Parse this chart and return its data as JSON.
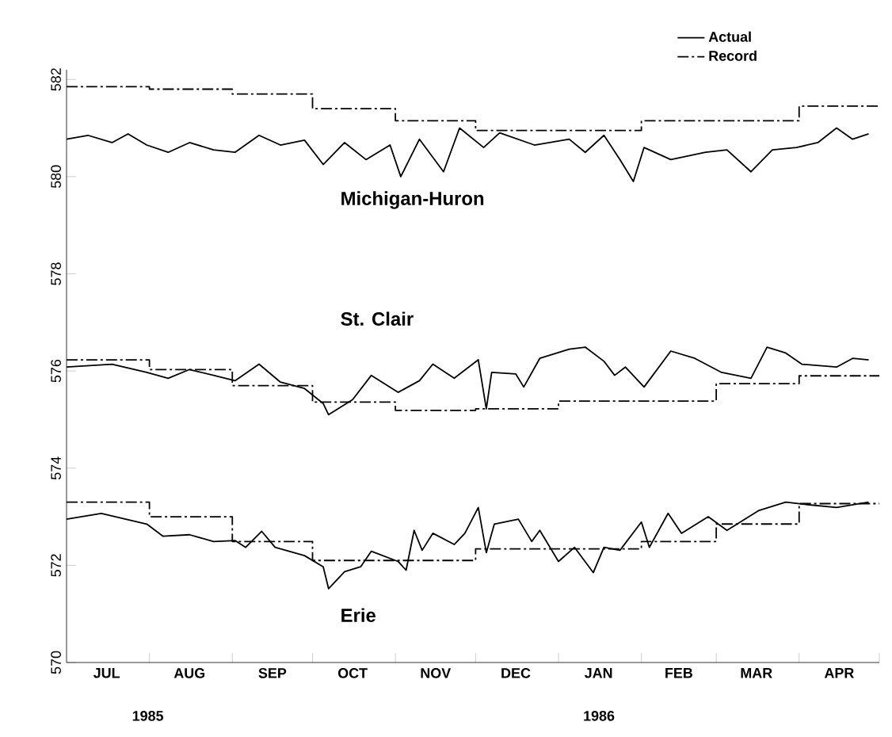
{
  "chart_data": {
    "type": "line",
    "xlim": [
      "1985-07-01",
      "1986-05-01"
    ],
    "xticks": [
      {
        "value": "1985-08-01",
        "label": null
      },
      {
        "value": "1985-09-01",
        "label": null
      },
      {
        "value": "1985-10-01",
        "label": null
      },
      {
        "value": "1985-11-01",
        "label": null
      },
      {
        "value": "1985-12-01",
        "label": null
      },
      {
        "value": "1986-01-01",
        "label": null
      },
      {
        "value": "1986-02-01",
        "label": null
      },
      {
        "value": "1986-03-01",
        "label": null
      },
      {
        "value": "1986-04-01",
        "label": null
      },
      {
        "value": "1986-05-01",
        "label": null
      },
      {
        "value": "1985-07-16",
        "label": "JUL"
      },
      {
        "value": "1985-08-16",
        "label": "AUG"
      },
      {
        "value": "1985-09-16",
        "label": "SEP"
      },
      {
        "value": "1985-10-16",
        "label": "OCT"
      },
      {
        "value": "1985-11-16",
        "label": "NOV"
      },
      {
        "value": "1985-12-16",
        "label": "DEC"
      },
      {
        "value": "1986-01-16",
        "label": "JAN"
      },
      {
        "value": "1986-02-15",
        "label": "FEB"
      },
      {
        "value": "1986-03-16",
        "label": "MAR"
      },
      {
        "value": "1986-04-16",
        "label": "APR"
      }
    ],
    "ylim": [
      570,
      582.2
    ],
    "yticks": [
      570,
      572,
      574,
      576,
      578,
      580,
      582
    ],
    "legend": "top right",
    "marker": "none",
    "series": [
      {
        "name": "Actual",
        "color": "#000000",
        "line_style": "solid",
        "x": [
          "1985-07-01",
          "1985-07-09",
          "1985-07-18",
          "1985-07-24",
          "1985-07-31",
          "1985-08-08",
          "1985-08-16",
          "1985-08-25",
          "1985-09-02",
          "1985-09-11",
          "1985-09-19",
          "1985-09-28",
          "1985-10-05",
          "1985-10-13",
          "1985-10-21",
          "1985-10-30",
          "1985-11-03",
          "1985-11-10",
          "1985-11-19",
          "1985-11-25",
          "1985-12-04",
          "1985-12-10",
          "1985-12-23",
          "1986-01-05",
          "1986-01-11",
          "1986-01-18",
          "1986-01-24",
          "1986-01-29",
          "1986-02-02",
          "1986-02-12",
          "1986-02-25",
          "1986-03-05",
          "1986-03-14",
          "1986-03-22",
          "1986-03-31",
          "1986-04-08",
          "1986-04-15",
          "1986-04-21",
          "1986-04-27"
        ],
        "values": [
          580.77,
          580.85,
          580.7,
          580.88,
          580.65,
          580.5,
          580.7,
          580.55,
          580.5,
          580.85,
          580.65,
          580.75,
          580.25,
          580.7,
          580.35,
          580.65,
          580.0,
          580.77,
          580.1,
          581.0,
          580.6,
          580.9,
          580.65,
          580.77,
          580.5,
          580.85,
          580.35,
          579.9,
          580.6,
          580.35,
          580.5,
          580.55,
          580.1,
          580.55,
          580.6,
          580.7,
          581.0,
          580.77,
          580.88
        ]
      },
      {
        "name": "Record",
        "type": "step",
        "color": "#000000",
        "line_style": "dashdot",
        "x": [
          "1985-07-01",
          "1985-08-01",
          "1985-09-01",
          "1985-10-01",
          "1985-11-01",
          "1985-12-01",
          "1986-01-01",
          "1986-02-01",
          "1986-03-01",
          "1986-04-01",
          "1986-05-01"
        ],
        "values": [
          581.85,
          581.8,
          581.7,
          581.4,
          581.15,
          580.95,
          580.95,
          581.15,
          581.15,
          581.45,
          581.45
        ]
      },
      {
        "color": "#000000",
        "line_style": "solid",
        "x": [
          "1985-07-01",
          "1985-07-18",
          "1985-07-31",
          "1985-08-08",
          "1985-08-16",
          "1985-08-25",
          "1985-09-02",
          "1985-09-11",
          "1985-09-19",
          "1985-09-28",
          "1985-10-05",
          "1985-10-07",
          "1985-10-16",
          "1985-10-23",
          "1985-11-02",
          "1985-11-10",
          "1985-11-15",
          "1985-11-23",
          "1985-12-02",
          "1985-12-05",
          "1985-12-07",
          "1985-12-16",
          "1985-12-19",
          "1985-12-25",
          "1986-01-05",
          "1986-01-11",
          "1986-01-18",
          "1986-01-22",
          "1986-01-26",
          "1986-02-02",
          "1986-02-12",
          "1986-02-21",
          "1986-03-03",
          "1986-03-14",
          "1986-03-20",
          "1986-03-27",
          "1986-04-02",
          "1986-04-15",
          "1986-04-21",
          "1986-04-27"
        ],
        "values": [
          576.08,
          576.14,
          575.97,
          575.85,
          576.03,
          575.91,
          575.8,
          576.14,
          575.77,
          575.64,
          575.33,
          575.1,
          575.41,
          575.91,
          575.56,
          575.8,
          576.14,
          575.85,
          576.23,
          575.22,
          575.97,
          575.94,
          575.67,
          576.26,
          576.45,
          576.49,
          576.2,
          575.91,
          576.08,
          575.67,
          576.41,
          576.26,
          575.97,
          575.85,
          576.49,
          576.37,
          576.14,
          576.08,
          576.26,
          576.23
        ]
      },
      {
        "type": "step",
        "color": "#000000",
        "line_style": "dashdot",
        "x": [
          "1985-07-01",
          "1985-08-01",
          "1985-09-01",
          "1985-10-01",
          "1985-11-01",
          "1985-12-01",
          "1986-01-01",
          "1986-02-01",
          "1986-03-01",
          "1986-04-01",
          "1986-05-01"
        ],
        "values": [
          576.23,
          576.03,
          575.7,
          575.36,
          575.19,
          575.22,
          575.38,
          575.38,
          575.74,
          575.9,
          575.9
        ]
      },
      {
        "color": "#000000",
        "line_style": "solid",
        "x": [
          "1985-07-01",
          "1985-07-14",
          "1985-07-31",
          "1985-08-06",
          "1985-08-16",
          "1985-08-25",
          "1985-09-02",
          "1985-09-06",
          "1985-09-12",
          "1985-09-17",
          "1985-09-28",
          "1985-10-05",
          "1985-10-07",
          "1985-10-13",
          "1985-10-19",
          "1985-10-23",
          "1985-11-02",
          "1985-11-05",
          "1985-11-08",
          "1985-11-11",
          "1985-11-15",
          "1985-11-23",
          "1985-11-27",
          "1985-12-02",
          "1985-12-05",
          "1985-12-08",
          "1985-12-17",
          "1985-12-22",
          "1985-12-25",
          "1986-01-01",
          "1986-01-07",
          "1986-01-14",
          "1986-01-18",
          "1986-01-24",
          "1986-02-01",
          "1986-02-04",
          "1986-02-11",
          "1986-02-16",
          "1986-02-26",
          "1986-03-05",
          "1986-03-17",
          "1986-03-27",
          "1986-04-04",
          "1986-04-15",
          "1986-04-27"
        ],
        "values": [
          572.95,
          573.07,
          572.85,
          572.6,
          572.63,
          572.49,
          572.51,
          572.37,
          572.7,
          572.37,
          572.2,
          571.97,
          571.52,
          571.87,
          571.97,
          572.29,
          572.08,
          571.9,
          572.72,
          572.31,
          572.66,
          572.43,
          572.66,
          573.19,
          572.26,
          572.85,
          572.95,
          572.49,
          572.72,
          572.08,
          572.37,
          571.85,
          572.37,
          572.31,
          572.89,
          572.37,
          573.07,
          572.66,
          573.0,
          572.72,
          573.13,
          573.3,
          573.25,
          573.19,
          573.3
        ]
      },
      {
        "type": "step",
        "color": "#000000",
        "line_style": "dashdot",
        "x": [
          "1985-07-01",
          "1985-08-01",
          "1985-09-01",
          "1985-10-01",
          "1985-11-01",
          "1985-12-01",
          "1986-01-01",
          "1986-02-01",
          "1986-03-01",
          "1986-04-01",
          "1986-05-01"
        ],
        "values": [
          573.3,
          573.0,
          572.49,
          572.1,
          572.1,
          572.34,
          572.34,
          572.49,
          572.85,
          573.27,
          573.27
        ]
      }
    ],
    "annotations": [
      "Michigan-Huron",
      "St. Clair",
      "Erie",
      "1985",
      "1986"
    ]
  }
}
